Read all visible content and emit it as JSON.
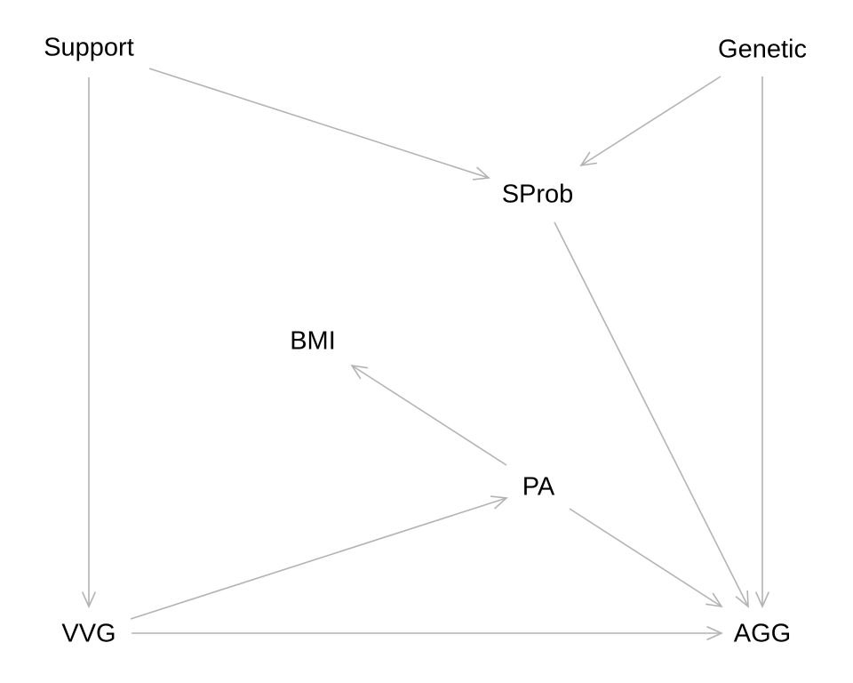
{
  "diagram": {
    "edge_color": "#b3b3b3",
    "label_color": "#000000",
    "nodes": [
      {
        "id": "Support",
        "label": "Support"
      },
      {
        "id": "Genetic",
        "label": "Genetic"
      },
      {
        "id": "SProb",
        "label": "SProb"
      },
      {
        "id": "BMI",
        "label": "BMI"
      },
      {
        "id": "PA",
        "label": "PA"
      },
      {
        "id": "VVG",
        "label": "VVG"
      },
      {
        "id": "AGG",
        "label": "AGG"
      }
    ],
    "edges": [
      {
        "from": "Support",
        "to": "SProb"
      },
      {
        "from": "Support",
        "to": "VVG"
      },
      {
        "from": "Genetic",
        "to": "SProb"
      },
      {
        "from": "Genetic",
        "to": "AGG"
      },
      {
        "from": "SProb",
        "to": "AGG"
      },
      {
        "from": "PA",
        "to": "BMI"
      },
      {
        "from": "PA",
        "to": "AGG"
      },
      {
        "from": "VVG",
        "to": "PA"
      },
      {
        "from": "VVG",
        "to": "AGG"
      }
    ]
  }
}
